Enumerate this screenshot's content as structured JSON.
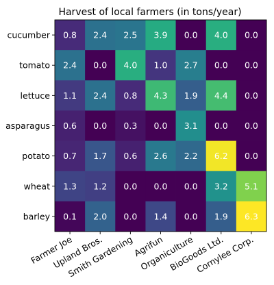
{
  "chart_data": {
    "type": "heatmap",
    "title": "Harvest of local farmers (in tons/year)",
    "xlabel": "",
    "ylabel": "",
    "x_categories": [
      "Farmer Joe",
      "Upland Bros.",
      "Smith Gardening",
      "Agrifun",
      "Organiculture",
      "BioGoods Ltd.",
      "Cornylee Corp."
    ],
    "y_categories": [
      "cucumber",
      "tomato",
      "lettuce",
      "asparagus",
      "potato",
      "wheat",
      "barley"
    ],
    "values": [
      [
        0.8,
        2.4,
        2.5,
        3.9,
        0.0,
        4.0,
        0.0
      ],
      [
        2.4,
        0.0,
        4.0,
        1.0,
        2.7,
        0.0,
        0.0
      ],
      [
        1.1,
        2.4,
        0.8,
        4.3,
        1.9,
        4.4,
        0.0
      ],
      [
        0.6,
        0.0,
        0.3,
        0.0,
        3.1,
        0.0,
        0.0
      ],
      [
        0.7,
        1.7,
        0.6,
        2.6,
        2.2,
        6.2,
        0.0
      ],
      [
        1.3,
        1.2,
        0.0,
        0.0,
        0.0,
        3.2,
        5.1
      ],
      [
        0.1,
        2.0,
        0.0,
        1.4,
        0.0,
        1.9,
        6.3
      ]
    ],
    "colormap": "viridis",
    "value_range": [
      0.0,
      6.3
    ],
    "grid": false,
    "legend": "none"
  }
}
